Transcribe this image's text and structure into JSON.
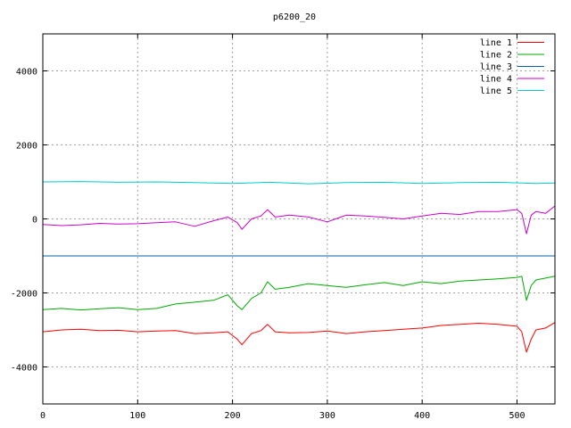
{
  "chart_data": {
    "type": "line",
    "title": "p6200_20",
    "xlabel": "",
    "ylabel": "",
    "xlim": [
      0,
      540
    ],
    "ylim": [
      -5000,
      5000
    ],
    "xticks": [
      0,
      100,
      200,
      300,
      400,
      500
    ],
    "yticks": [
      -4000,
      -2000,
      0,
      2000,
      4000
    ],
    "grid": true,
    "legend_position": "top-right",
    "series": [
      {
        "name": "line 1",
        "color": "#ff0000",
        "x": [
          0,
          20,
          40,
          60,
          80,
          100,
          120,
          140,
          160,
          180,
          195,
          205,
          210,
          220,
          230,
          237,
          245,
          260,
          280,
          300,
          320,
          340,
          360,
          380,
          400,
          420,
          440,
          460,
          480,
          500,
          505,
          510,
          515,
          520,
          530,
          540
        ],
        "y": [
          -3050,
          -3000,
          -2980,
          -3020,
          -3010,
          -3050,
          -3030,
          -3020,
          -3100,
          -3080,
          -3050,
          -3250,
          -3400,
          -3100,
          -3020,
          -2850,
          -3050,
          -3080,
          -3070,
          -3030,
          -3100,
          -3050,
          -3020,
          -2980,
          -2950,
          -2880,
          -2850,
          -2820,
          -2850,
          -2900,
          -3050,
          -3600,
          -3250,
          -3000,
          -2950,
          -2800
        ]
      },
      {
        "name": "line 2",
        "color": "#00aa00",
        "x": [
          0,
          20,
          40,
          60,
          80,
          100,
          120,
          140,
          160,
          180,
          195,
          205,
          210,
          220,
          230,
          237,
          245,
          260,
          280,
          300,
          320,
          340,
          360,
          380,
          400,
          420,
          440,
          460,
          480,
          500,
          505,
          510,
          515,
          520,
          530,
          540
        ],
        "y": [
          -2450,
          -2420,
          -2460,
          -2430,
          -2400,
          -2450,
          -2420,
          -2300,
          -2250,
          -2200,
          -2050,
          -2350,
          -2450,
          -2150,
          -2000,
          -1700,
          -1900,
          -1850,
          -1750,
          -1800,
          -1850,
          -1780,
          -1720,
          -1800,
          -1700,
          -1750,
          -1680,
          -1650,
          -1620,
          -1580,
          -1550,
          -2200,
          -1800,
          -1650,
          -1600,
          -1550
        ]
      },
      {
        "name": "line 3",
        "color": "#0060ad",
        "x": [
          0,
          540
        ],
        "y": [
          -1000,
          -1000
        ]
      },
      {
        "name": "line 4",
        "color": "#cc00cc",
        "x": [
          0,
          20,
          40,
          60,
          80,
          100,
          120,
          140,
          160,
          180,
          195,
          205,
          210,
          220,
          230,
          237,
          245,
          260,
          280,
          300,
          320,
          340,
          360,
          380,
          400,
          420,
          440,
          460,
          480,
          500,
          505,
          510,
          515,
          520,
          530,
          540
        ],
        "y": [
          -150,
          -180,
          -160,
          -120,
          -140,
          -130,
          -100,
          -80,
          -200,
          -50,
          50,
          -100,
          -280,
          0,
          80,
          250,
          50,
          100,
          50,
          -80,
          100,
          80,
          40,
          0,
          80,
          150,
          120,
          200,
          200,
          250,
          150,
          -400,
          100,
          200,
          150,
          350
        ]
      },
      {
        "name": "line 5",
        "color": "#00cccc",
        "x": [
          0,
          40,
          80,
          120,
          160,
          200,
          240,
          280,
          320,
          360,
          400,
          440,
          480,
          520,
          540
        ],
        "y": [
          1000,
          1010,
          990,
          1000,
          980,
          960,
          990,
          950,
          980,
          990,
          960,
          980,
          990,
          960,
          970
        ]
      }
    ]
  }
}
